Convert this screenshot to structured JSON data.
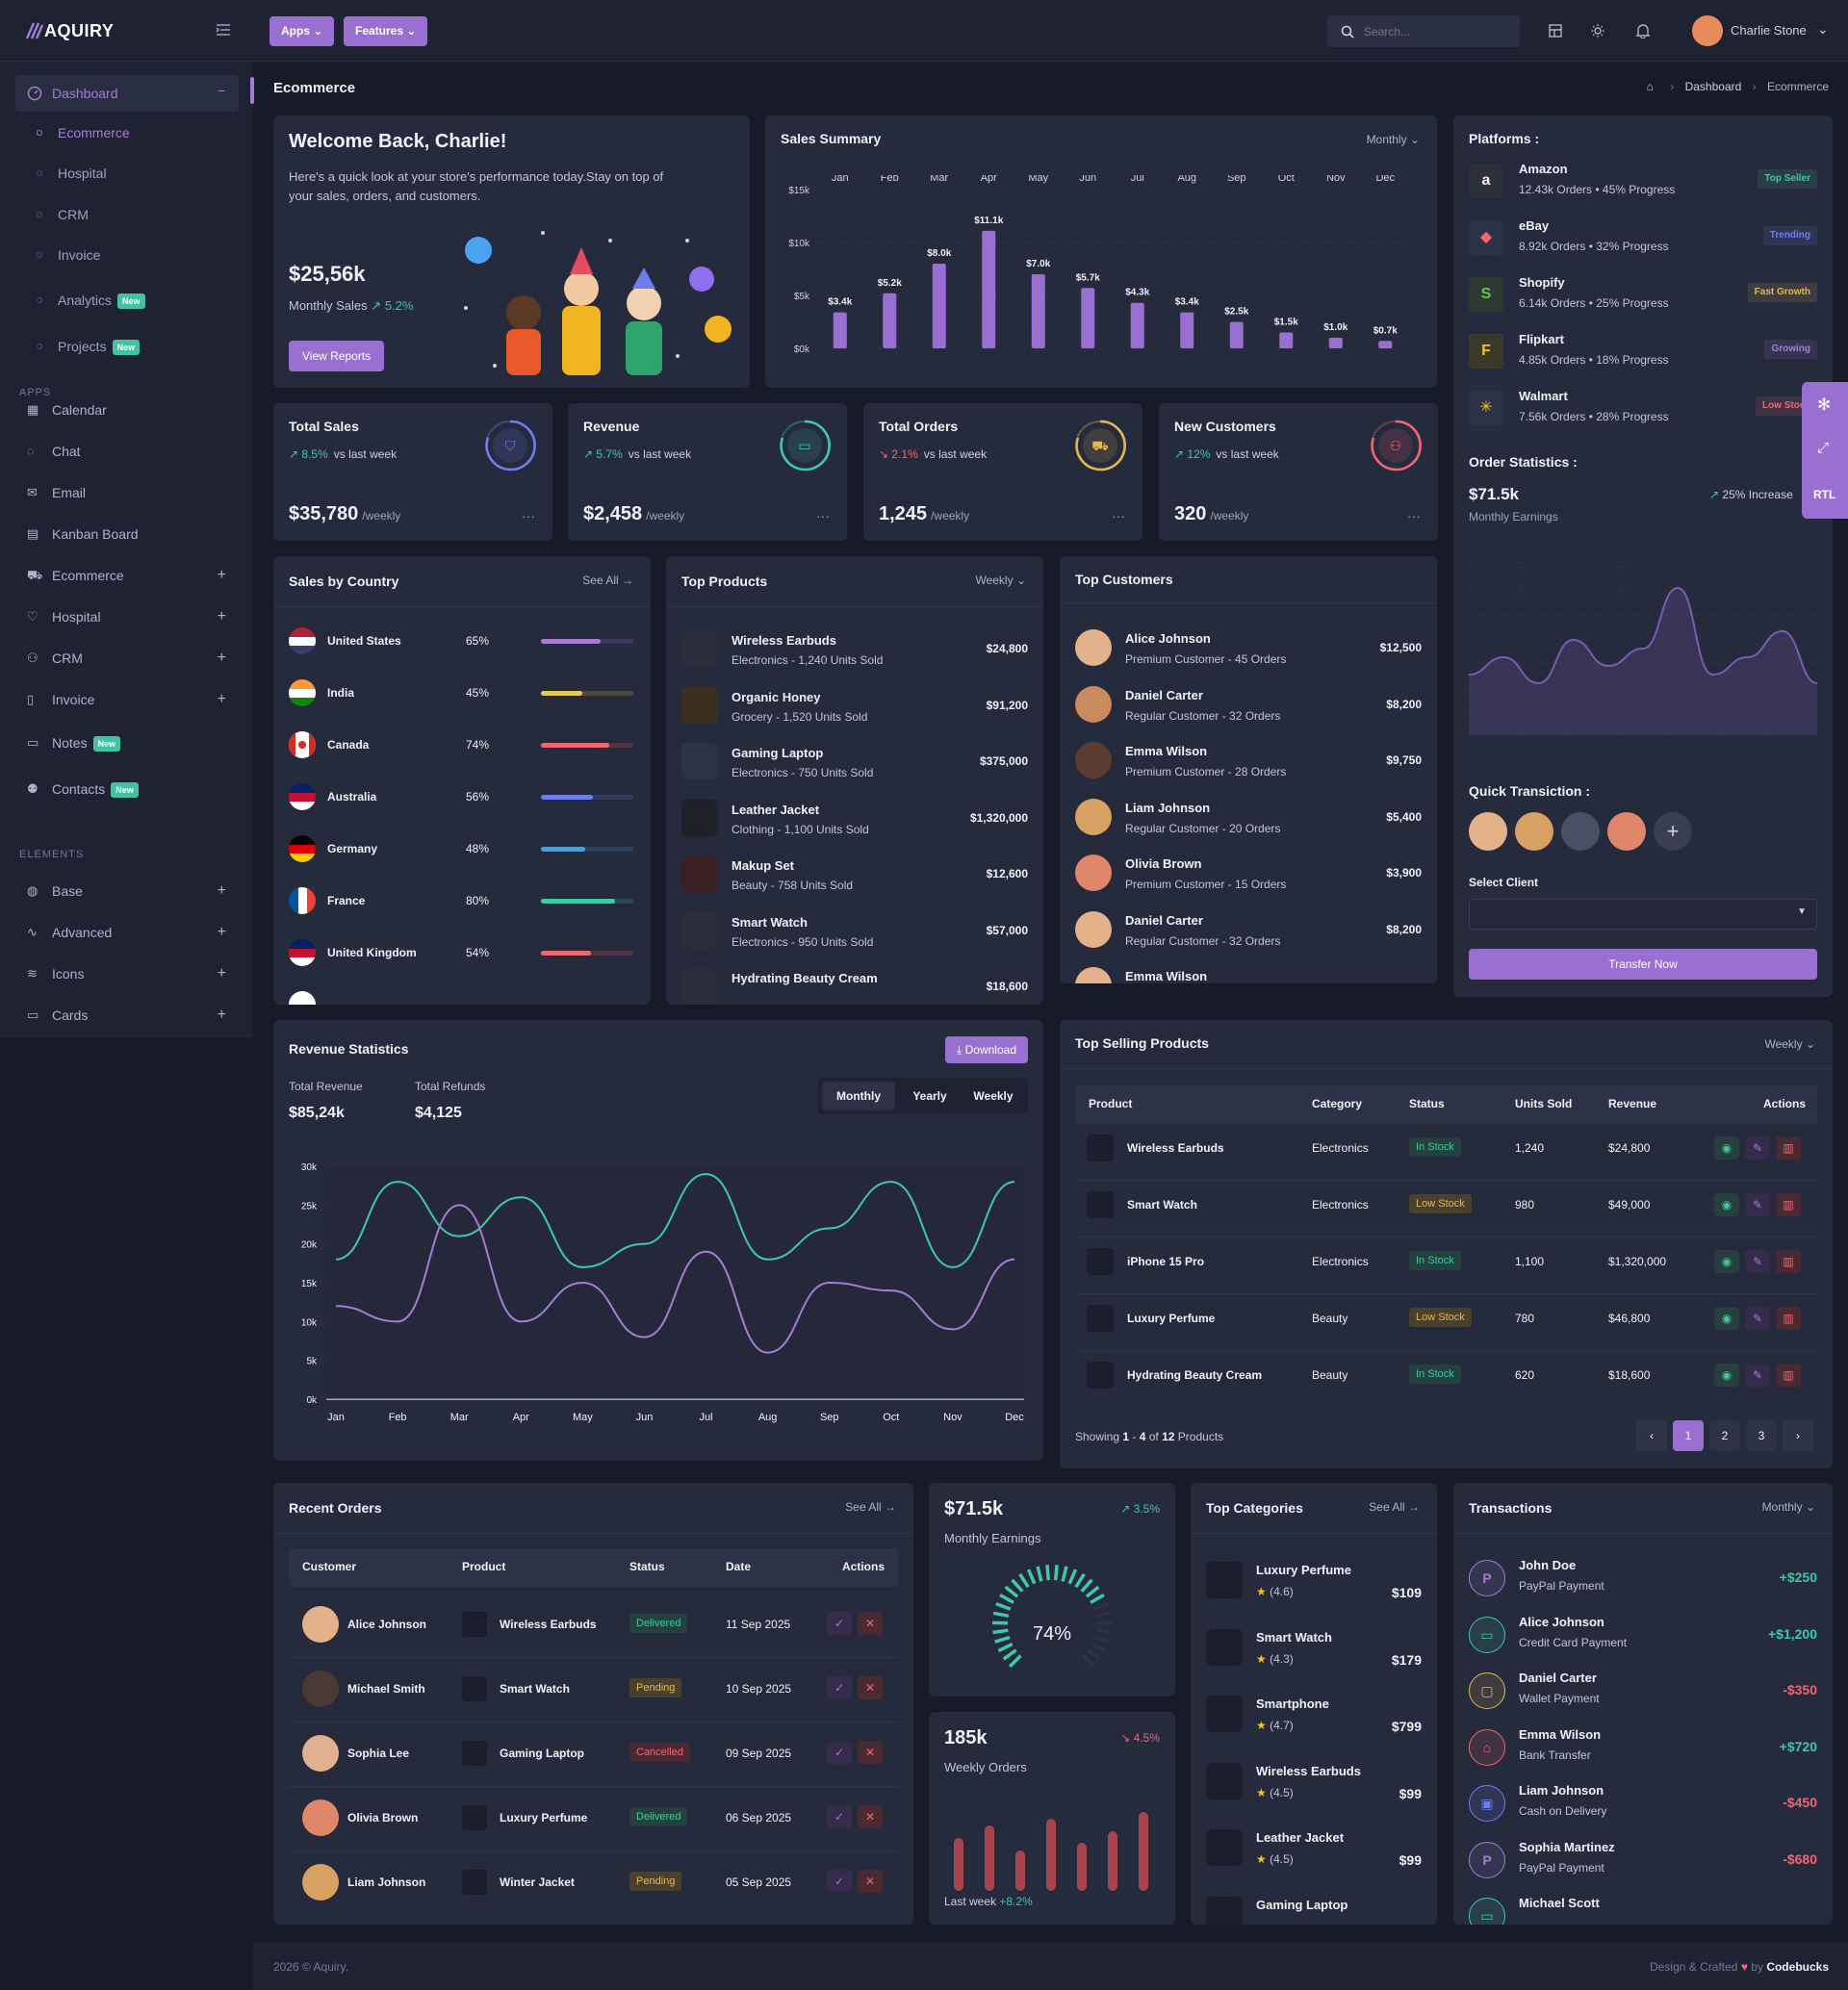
{
  "brand": {
    "name": "AQUIRY"
  },
  "topbar": {
    "apps": "Apps",
    "features": "Features",
    "search_placeholder": "Search...",
    "user": "Charlie Stone"
  },
  "page": {
    "title": "Ecommerce",
    "crumb1": "Dashboard",
    "crumb2": "Ecommerce"
  },
  "sidebar": {
    "dashboard": "Dashboard",
    "subs": [
      "Ecommerce",
      "Hospital",
      "CRM",
      "Invoice",
      "Analytics",
      "Projects"
    ],
    "new": "New",
    "apps_head": "APPS",
    "apps": [
      "Calendar",
      "Chat",
      "Email",
      "Kanban Board",
      "Ecommerce",
      "Hospital",
      "CRM",
      "Invoice",
      "Notes",
      "Contacts"
    ],
    "elements_head": "ELEMENTS",
    "elements": [
      "Base",
      "Advanced",
      "Icons",
      "Cards"
    ]
  },
  "welcome": {
    "title": "Welcome Back, Charlie!",
    "text": "Here's a quick look at your store's performance today.Stay on top of your sales, orders, and customers.",
    "value": "$25,56k",
    "label": "Monthly Sales",
    "trend": "5.2%",
    "button": "View Reports"
  },
  "sales_summary": {
    "title": "Sales Summary",
    "period": "Monthly"
  },
  "chart_data": [
    {
      "type": "bar",
      "title": "Sales Summary",
      "categories": [
        "Jan",
        "Feb",
        "Mar",
        "Apr",
        "May",
        "Jun",
        "Jul",
        "Aug",
        "Sep",
        "Oct",
        "Nov",
        "Dec"
      ],
      "values": [
        3.4,
        5.2,
        8.0,
        11.1,
        7.0,
        5.7,
        4.3,
        3.4,
        2.5,
        1.5,
        1.0,
        0.7
      ],
      "data_labels": [
        "$3.4k",
        "$5.2k",
        "$8.0k",
        "$11.1k",
        "$7.0k",
        "$5.7k",
        "$4.3k",
        "$3.4k",
        "$2.5k",
        "$1.5k",
        "$1.0k",
        "$0.7k"
      ],
      "y_ticks": [
        "$15k",
        "$10k",
        "$5k",
        "$0k"
      ],
      "ylim": [
        0,
        15
      ]
    },
    {
      "type": "line",
      "title": "Revenue Statistics",
      "categories": [
        "Jan",
        "Feb",
        "Mar",
        "Apr",
        "May",
        "Jun",
        "Jul",
        "Aug",
        "Sep",
        "Oct",
        "Nov",
        "Dec"
      ],
      "y_ticks": [
        "30k",
        "25k",
        "20k",
        "15k",
        "10k",
        "5k",
        "0k"
      ],
      "ylim": [
        0,
        30
      ],
      "series": [
        {
          "name": "",
          "color": "#3ec9a8",
          "values": [
            18,
            28,
            21,
            26,
            17,
            20,
            29,
            18,
            22,
            28,
            17,
            28
          ]
        },
        {
          "name": "",
          "color": "#a67cd6",
          "values": [
            12,
            10,
            25,
            10,
            15,
            8,
            19,
            6,
            15,
            14,
            9,
            18
          ]
        }
      ]
    },
    {
      "type": "line",
      "title": "Order Statistics",
      "values": [
        0.35,
        0.45,
        0.3,
        0.55,
        0.4,
        0.5,
        0.85,
        0.35,
        0.45,
        0.6,
        0.3
      ]
    },
    {
      "type": "bar",
      "title": "Weekly Orders",
      "values": [
        0.55,
        0.68,
        0.42,
        0.75,
        0.5,
        0.62,
        0.82
      ]
    }
  ],
  "stats": [
    {
      "title": "Total Sales",
      "trend": "8.5%",
      "dir": "up",
      "vs": "vs last week",
      "value": "$35,780",
      "unit": "/weekly",
      "color": "#6e7ef0"
    },
    {
      "title": "Revenue",
      "trend": "5.7%",
      "dir": "up",
      "vs": "vs last week",
      "value": "$2,458",
      "unit": "/weekly",
      "color": "#3ec9a8"
    },
    {
      "title": "Total Orders",
      "trend": "2.1%",
      "dir": "down",
      "vs": "vs last week",
      "value": "1,245",
      "unit": "/weekly",
      "color": "#e4b74f"
    },
    {
      "title": "New Customers",
      "trend": "12%",
      "dir": "up",
      "vs": "vs last week",
      "value": "320",
      "unit": "/weekly",
      "color": "#f06772"
    }
  ],
  "platforms": {
    "title": "Platforms :",
    "items": [
      {
        "name": "Amazon",
        "desc": "12.43k Orders • 45% Progress",
        "badge": "Top Seller",
        "color": "#3ec9a8"
      },
      {
        "name": "eBay",
        "desc": "8.92k Orders • 32% Progress",
        "badge": "Trending",
        "color": "#6e7ef0"
      },
      {
        "name": "Shopify",
        "desc": "6.14k Orders • 25% Progress",
        "badge": "Fast Growth",
        "color": "#e4b74f"
      },
      {
        "name": "Flipkart",
        "desc": "4.85k Orders • 18% Progress",
        "badge": "Growing",
        "color": "#a67cd6"
      },
      {
        "name": "Walmart",
        "desc": "7.56k Orders • 28% Progress",
        "badge": "Low Stock",
        "color": "#f06772"
      }
    ]
  },
  "order_stats": {
    "title": "Order Statistics :",
    "value": "$71.5k",
    "label": "Monthly Earnings",
    "trend": "25% Increase"
  },
  "quick": {
    "title": "Quick Transiction :",
    "select_label": "Select Client",
    "button": "Transfer Now"
  },
  "rtl": "RTL",
  "countries": {
    "title": "Sales by Country",
    "see_all": "See All",
    "items": [
      {
        "name": "United States",
        "pct": "65%",
        "p": 0.65,
        "color": "#a67cd6"
      },
      {
        "name": "India",
        "pct": "45%",
        "p": 0.45,
        "color": "#e4c95a"
      },
      {
        "name": "Canada",
        "pct": "74%",
        "p": 0.74,
        "color": "#f06772"
      },
      {
        "name": "Australia",
        "pct": "56%",
        "p": 0.56,
        "color": "#6e7ef0"
      },
      {
        "name": "Germany",
        "pct": "48%",
        "p": 0.48,
        "color": "#4a9fd6"
      },
      {
        "name": "France",
        "pct": "80%",
        "p": 0.8,
        "color": "#3ec9a8"
      },
      {
        "name": "United Kingdom",
        "pct": "54%",
        "p": 0.54,
        "color": "#f06772"
      }
    ]
  },
  "top_products": {
    "title": "Top Products",
    "period": "Weekly",
    "items": [
      {
        "name": "Wireless Earbuds",
        "desc": "Electronics - 1,240 Units Sold",
        "value": "$24,800"
      },
      {
        "name": "Organic Honey",
        "desc": "Grocery - 1,520 Units Sold",
        "value": "$91,200"
      },
      {
        "name": "Gaming Laptop",
        "desc": "Electronics - 750 Units Sold",
        "value": "$375,000"
      },
      {
        "name": "Leather Jacket",
        "desc": "Clothing - 1,100 Units Sold",
        "value": "$1,320,000"
      },
      {
        "name": "Makup Set",
        "desc": "Beauty - 758 Units Sold",
        "value": "$12,600"
      },
      {
        "name": "Smart Watch",
        "desc": "Electronics - 950 Units Sold",
        "value": "$57,000"
      },
      {
        "name": "Hydrating Beauty Cream",
        "desc": "",
        "value": "$18,600"
      }
    ]
  },
  "top_customers": {
    "title": "Top Customers",
    "items": [
      {
        "name": "Alice Johnson",
        "desc": "Premium Customer - 45 Orders",
        "value": "$12,500"
      },
      {
        "name": "Daniel Carter",
        "desc": "Regular Customer - 32 Orders",
        "value": "$8,200"
      },
      {
        "name": "Emma Wilson",
        "desc": "Premium Customer - 28 Orders",
        "value": "$9,750"
      },
      {
        "name": "Liam Johnson",
        "desc": "Regular Customer - 20 Orders",
        "value": "$5,400"
      },
      {
        "name": "Olivia Brown",
        "desc": "Premium Customer - 15 Orders",
        "value": "$3,900"
      },
      {
        "name": "Daniel Carter",
        "desc": "Regular Customer - 32 Orders",
        "value": "$8,200"
      },
      {
        "name": "Emma Wilson",
        "desc": "",
        "value": ""
      }
    ]
  },
  "revenue": {
    "title": "Revenue Statistics",
    "download": "Download",
    "tr_label": "Total Revenue",
    "tr_value": "$85,24k",
    "rf_label": "Total Refunds",
    "rf_value": "$4,125",
    "tabs": [
      "Monthly",
      "Yearly",
      "Weekly"
    ]
  },
  "selling": {
    "title": "Top Selling Products",
    "period": "Weekly",
    "headers": [
      "Product",
      "Category",
      "Status",
      "Units Sold",
      "Revenue",
      "Actions"
    ],
    "rows": [
      {
        "product": "Wireless Earbuds",
        "category": "Electronics",
        "status": "In Stock",
        "units": "1,240",
        "revenue": "$24,800"
      },
      {
        "product": "Smart Watch",
        "category": "Electronics",
        "status": "Low Stock",
        "units": "980",
        "revenue": "$49,000"
      },
      {
        "product": "iPhone 15 Pro",
        "category": "Electronics",
        "status": "In Stock",
        "units": "1,100",
        "revenue": "$1,320,000"
      },
      {
        "product": "Luxury Perfume",
        "category": "Beauty",
        "status": "Low Stock",
        "units": "780",
        "revenue": "$46,800"
      },
      {
        "product": "Hydrating Beauty Cream",
        "category": "Beauty",
        "status": "In Stock",
        "units": "620",
        "revenue": "$18,600"
      }
    ],
    "showing_pre": "Showing ",
    "showing_a": "1",
    "showing_mid1": " - ",
    "showing_b": "4",
    "showing_mid2": " of ",
    "showing_c": "12",
    "showing_post": " Products",
    "pages": [
      "1",
      "2",
      "3"
    ]
  },
  "orders": {
    "title": "Recent Orders",
    "see_all": "See All",
    "headers": [
      "Customer",
      "Product",
      "Status",
      "Date",
      "Actions"
    ],
    "rows": [
      {
        "customer": "Alice Johnson",
        "product": "Wireless Earbuds",
        "status": "Delivered",
        "date": "11 Sep 2025"
      },
      {
        "customer": "Michael Smith",
        "product": "Smart Watch",
        "status": "Pending",
        "date": "10 Sep 2025"
      },
      {
        "customer": "Sophia Lee",
        "product": "Gaming Laptop",
        "status": "Cancelled",
        "date": "09 Sep 2025"
      },
      {
        "customer": "Olivia Brown",
        "product": "Luxury Perfume",
        "status": "Delivered",
        "date": "06 Sep 2025"
      },
      {
        "customer": "Liam Johnson",
        "product": "Winter Jacket",
        "status": "Pending",
        "date": "05 Sep 2025"
      }
    ]
  },
  "earnings": {
    "value": "$71.5k",
    "trend": "3.5%",
    "label": "Monthly Earnings",
    "pct": "74%",
    "p": 0.74
  },
  "weekly": {
    "value": "185k",
    "trend": "4.5%",
    "label": "Weekly Orders",
    "last": "Last week",
    "last_val": "+8.2%"
  },
  "categories": {
    "title": "Top Categories",
    "see_all": "See All",
    "items": [
      {
        "name": "Luxury Perfume",
        "rating": "(4.6)",
        "price": "$109"
      },
      {
        "name": "Smart Watch",
        "rating": "(4.3)",
        "price": "$179"
      },
      {
        "name": "Smartphone",
        "rating": "(4.7)",
        "price": "$799"
      },
      {
        "name": "Wireless Earbuds",
        "rating": "(4.5)",
        "price": "$99"
      },
      {
        "name": "Leather Jacket",
        "rating": "(4.5)",
        "price": "$99"
      },
      {
        "name": "Gaming Laptop",
        "rating": "",
        "price": ""
      }
    ]
  },
  "transactions": {
    "title": "Transactions",
    "period": "Monthly",
    "items": [
      {
        "name": "John Doe",
        "desc": "PayPal Payment",
        "amount": "+$250",
        "color": "#a67cd6",
        "pos": true
      },
      {
        "name": "Alice Johnson",
        "desc": "Credit Card Payment",
        "amount": "+$1,200",
        "color": "#3ec9a8",
        "pos": true
      },
      {
        "name": "Daniel Carter",
        "desc": "Wallet Payment",
        "amount": "-$350",
        "color": "#e4b74f",
        "pos": false
      },
      {
        "name": "Emma Wilson",
        "desc": "Bank Transfer",
        "amount": "+$720",
        "color": "#f06772",
        "pos": true
      },
      {
        "name": "Liam Johnson",
        "desc": "Cash on Delivery",
        "amount": "-$450",
        "color": "#6e7ef0",
        "pos": false
      },
      {
        "name": "Sophia Martinez",
        "desc": "PayPal Payment",
        "amount": "-$680",
        "color": "#a67cd6",
        "pos": false
      },
      {
        "name": "Michael Scott",
        "desc": "",
        "amount": "",
        "color": "#3ec9a8",
        "pos": true
      }
    ]
  },
  "footer": {
    "copy": "2026 © Aquiry.",
    "credit": "Design & Crafted",
    "by": "by",
    "author": "Codebucks"
  }
}
